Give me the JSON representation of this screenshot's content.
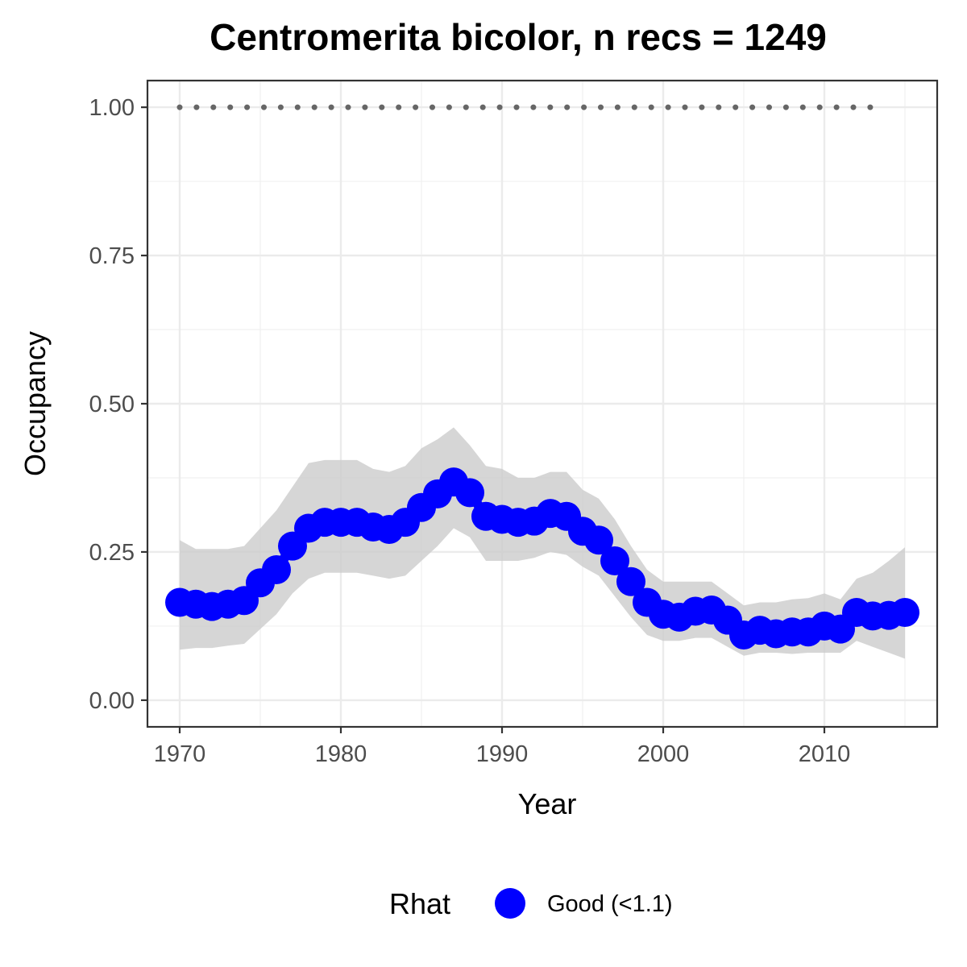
{
  "chart_data": {
    "type": "line",
    "title": "Centromerita bicolor, n recs = 1249",
    "xlabel": "Year",
    "ylabel": "Occupancy",
    "xlim": [
      1968,
      2017
    ],
    "ylim": [
      -0.045,
      1.045
    ],
    "x_ticks": [
      1970,
      1980,
      1990,
      2000,
      2010
    ],
    "x_tick_labels": [
      "1970",
      "1980",
      "1990",
      "2000",
      "2010"
    ],
    "y_ticks": [
      0,
      0.25,
      0.5,
      0.75,
      1.0
    ],
    "y_tick_labels": [
      "0.00",
      "0.25",
      "0.50",
      "0.75",
      "1.00"
    ],
    "grid": true,
    "legend": {
      "position": "bottom",
      "title": "Rhat",
      "entries": [
        {
          "label": "Good (<1.1)",
          "color": "#0000ff"
        }
      ]
    },
    "x": [
      1970,
      1971,
      1972,
      1973,
      1974,
      1975,
      1976,
      1977,
      1978,
      1979,
      1980,
      1981,
      1982,
      1983,
      1984,
      1985,
      1986,
      1987,
      1988,
      1989,
      1990,
      1991,
      1992,
      1993,
      1994,
      1995,
      1996,
      1997,
      1998,
      1999,
      2000,
      2001,
      2002,
      2003,
      2004,
      2005,
      2006,
      2007,
      2008,
      2009,
      2010,
      2011,
      2012,
      2013,
      2014,
      2015
    ],
    "series": [
      {
        "color": "#0000ff",
        "values": [
          0.165,
          0.162,
          0.158,
          0.162,
          0.168,
          0.198,
          0.22,
          0.26,
          0.29,
          0.3,
          0.3,
          0.3,
          0.292,
          0.288,
          0.3,
          0.325,
          0.348,
          0.368,
          0.35,
          0.31,
          0.305,
          0.3,
          0.302,
          0.315,
          0.31,
          0.285,
          0.27,
          0.235,
          0.2,
          0.165,
          0.145,
          0.14,
          0.15,
          0.152,
          0.135,
          0.11,
          0.118,
          0.112,
          0.115,
          0.115,
          0.125,
          0.12,
          0.148,
          0.142,
          0.143,
          0.148
        ],
        "lower": [
          0.085,
          0.088,
          0.088,
          0.092,
          0.095,
          0.12,
          0.145,
          0.18,
          0.205,
          0.215,
          0.215,
          0.215,
          0.21,
          0.205,
          0.21,
          0.235,
          0.26,
          0.29,
          0.275,
          0.235,
          0.235,
          0.235,
          0.24,
          0.25,
          0.245,
          0.225,
          0.21,
          0.175,
          0.14,
          0.11,
          0.1,
          0.1,
          0.105,
          0.105,
          0.09,
          0.075,
          0.08,
          0.08,
          0.078,
          0.08,
          0.08,
          0.08,
          0.1,
          0.09,
          0.08,
          0.07
        ],
        "upper": [
          0.27,
          0.255,
          0.255,
          0.255,
          0.26,
          0.29,
          0.32,
          0.36,
          0.4,
          0.405,
          0.405,
          0.405,
          0.39,
          0.385,
          0.395,
          0.425,
          0.44,
          0.46,
          0.43,
          0.395,
          0.39,
          0.375,
          0.375,
          0.385,
          0.385,
          0.355,
          0.34,
          0.305,
          0.26,
          0.22,
          0.2,
          0.2,
          0.2,
          0.2,
          0.18,
          0.16,
          0.165,
          0.165,
          0.17,
          0.172,
          0.18,
          0.17,
          0.205,
          0.215,
          0.235,
          0.258
        ]
      },
      {
        "color": "#666666",
        "style": "dotted",
        "x": [
          1970,
          2013
        ],
        "values": [
          1.0,
          1.0
        ]
      }
    ]
  }
}
